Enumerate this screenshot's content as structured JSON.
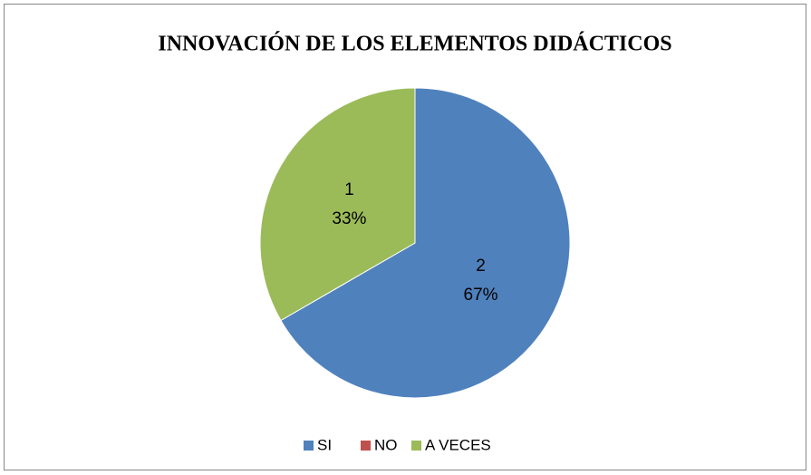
{
  "chart_data": {
    "type": "pie",
    "title": "INNOVACIÓN DE LOS ELEMENTOS DIDÁCTICOS",
    "categories": [
      "SI",
      "NO",
      "A VECES"
    ],
    "values": [
      2,
      0,
      1
    ],
    "percent_labels": [
      "67%",
      null,
      "33%"
    ],
    "colors": [
      "#4f81bd",
      "#c0504d",
      "#9bbb59"
    ],
    "legend": "bottom"
  }
}
